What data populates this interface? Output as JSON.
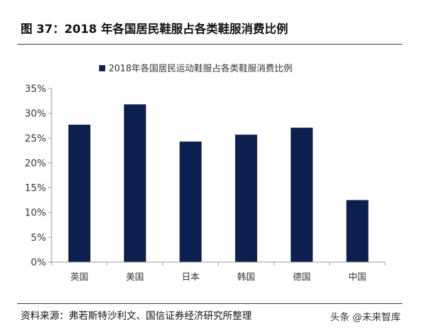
{
  "figure": {
    "title": "图 37：2018 年各国居民鞋服占各类鞋服消费比例",
    "source": "资料来源：弗若斯特沙利文、国信证券经济研究所整理",
    "watermark": "头条 @未来智库"
  },
  "chart_data": {
    "type": "bar",
    "title": "",
    "xlabel": "",
    "ylabel": "",
    "categories": [
      "英国",
      "美国",
      "日本",
      "韩国",
      "德国",
      "中国"
    ],
    "series": [
      {
        "name": "2018年各国居民运动鞋服占各类鞋服消费比例",
        "values": [
          27.7,
          31.8,
          24.3,
          25.7,
          27.1,
          12.5
        ],
        "color": "#0d1f4f"
      }
    ],
    "ylim": [
      0,
      35
    ],
    "yticks": [
      "0%",
      "5%",
      "10%",
      "15%",
      "20%",
      "25%",
      "30%",
      "35%"
    ],
    "grid": false,
    "legend": "top-center"
  }
}
